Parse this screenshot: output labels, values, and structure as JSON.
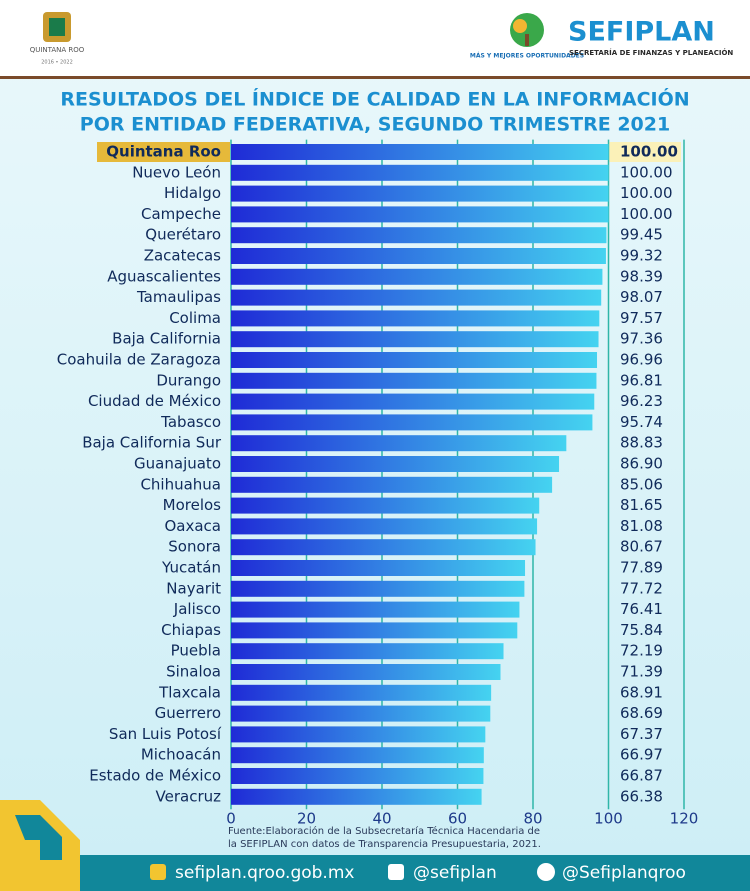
{
  "header": {
    "state_logo": "QUINTANA ROO",
    "state_years": "2016 • 2022",
    "slogan": "MÁS Y MEJORES OPORTUNIDADES",
    "brand": "SEFIPLAN",
    "brand_subtitle": "SECRETARÍA DE FINANZAS Y PLANEACIÓN"
  },
  "chart_data": {
    "type": "hbar",
    "title": [
      "RESULTADOS DEL ÍNDICE DE CALIDAD EN LA INFORMACIÓN",
      "POR ENTIDAD FEDERATIVA, SEGUNDO TRIMESTRE 2021"
    ],
    "categories": [
      "Quintana Roo",
      "Nuevo León",
      "Hidalgo",
      "Campeche",
      "Querétaro",
      "Zacatecas",
      "Aguascalientes",
      "Tamaulipas",
      "Colima",
      "Baja California",
      "Coahuila de Zaragoza",
      "Durango",
      "Ciudad de México",
      "Tabasco",
      "Baja California Sur",
      "Guanajuato",
      "Chihuahua",
      "Morelos",
      "Oaxaca",
      "Sonora",
      "Yucatán",
      "Nayarit",
      "Jalisco",
      "Chiapas",
      "Puebla",
      "Sinaloa",
      "Tlaxcala",
      "Guerrero",
      "San Luis Potosí",
      "Michoacán",
      "Estado de México",
      "Veracruz"
    ],
    "values": [
      100,
      100,
      100,
      100,
      99.45,
      99.32,
      98.39,
      98.07,
      97.57,
      97.36,
      96.96,
      96.81,
      96.23,
      95.74,
      88.83,
      86.9,
      85.06,
      81.65,
      81.08,
      80.67,
      77.89,
      77.72,
      76.41,
      75.84,
      72.19,
      71.39,
      68.91,
      68.69,
      67.37,
      66.97,
      66.87,
      66.38
    ],
    "value_labels": [
      "100.00",
      "100.00",
      "100.00",
      "100.00",
      "99.45",
      "99.32",
      "98.39",
      "98.07",
      "97.57",
      "97.36",
      "96.96",
      "96.81",
      "96.23",
      "95.74",
      "88.83",
      "86.90",
      "85.06",
      "81.65",
      "81.08",
      "80.67",
      "77.89",
      "77.72",
      "76.41",
      "75.84",
      "72.19",
      "71.39",
      "68.91",
      "68.69",
      "67.37",
      "66.97",
      "66.87",
      "66.38"
    ],
    "xlim": [
      0,
      120
    ],
    "xticks": [
      0,
      20,
      40,
      60,
      80,
      100,
      120
    ],
    "grid": true,
    "bar_gradient": [
      "#1f2bd6",
      "#45d3f0"
    ],
    "note": [
      "Fuente:Elaboración de la Subsecretaría Técnica Hacendaria de",
      "la SEFIPLAN con datos de Transparencia Presupuestaria, 2021."
    ]
  },
  "footer": {
    "website": "sefiplan.qroo.gob.mx",
    "facebook": "@sefiplan",
    "twitter": "@Sefiplanqroo"
  }
}
